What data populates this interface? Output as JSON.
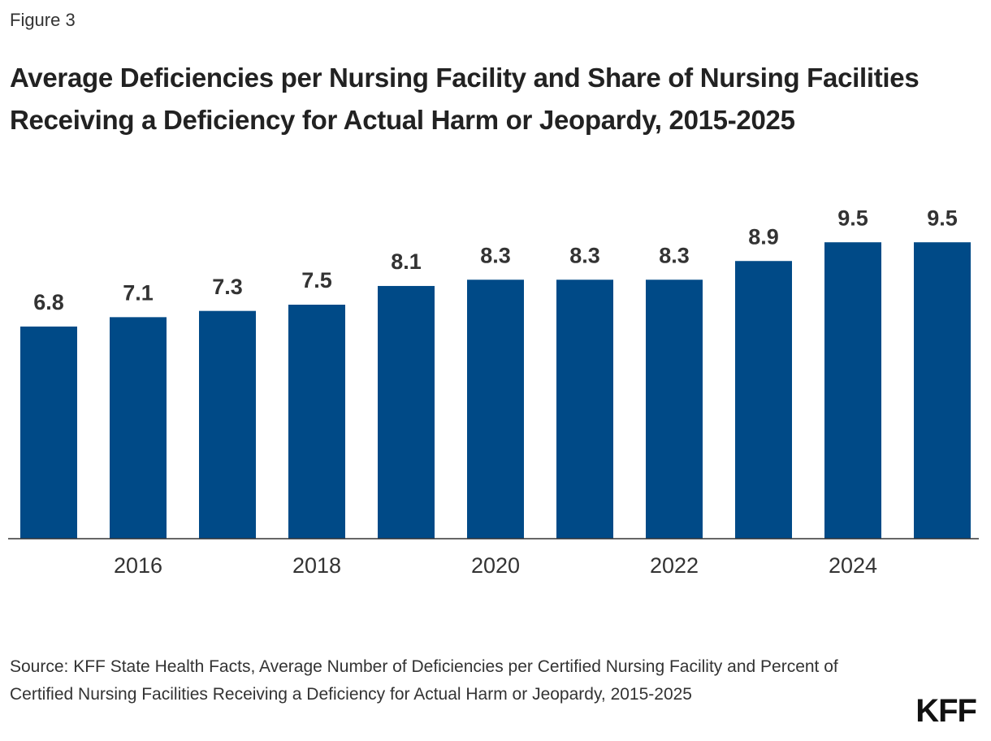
{
  "figure_label": "Figure 3",
  "chart_data": {
    "type": "bar",
    "title": "Average Deficiencies per Nursing Facility and Share of Nursing Facilities Receiving a Deficiency for Actual Harm or Jeopardy, 2015-2025",
    "categories": [
      null,
      "2016",
      null,
      "2018",
      null,
      "2020",
      null,
      "2022",
      null,
      "2024",
      null
    ],
    "values": [
      6.8,
      7.1,
      7.3,
      7.5,
      8.1,
      8.3,
      8.3,
      8.3,
      8.9,
      9.5,
      9.5
    ],
    "color": "#004a87",
    "ylim": [
      0,
      10
    ],
    "grid": false
  },
  "source": "Source: KFF State Health Facts, Average Number of Deficiencies per Certified Nursing Facility and Percent of Certified Nursing Facilities Receiving a Deficiency for Actual Harm or Jeopardy, 2015-2025",
  "logo": "KFF"
}
